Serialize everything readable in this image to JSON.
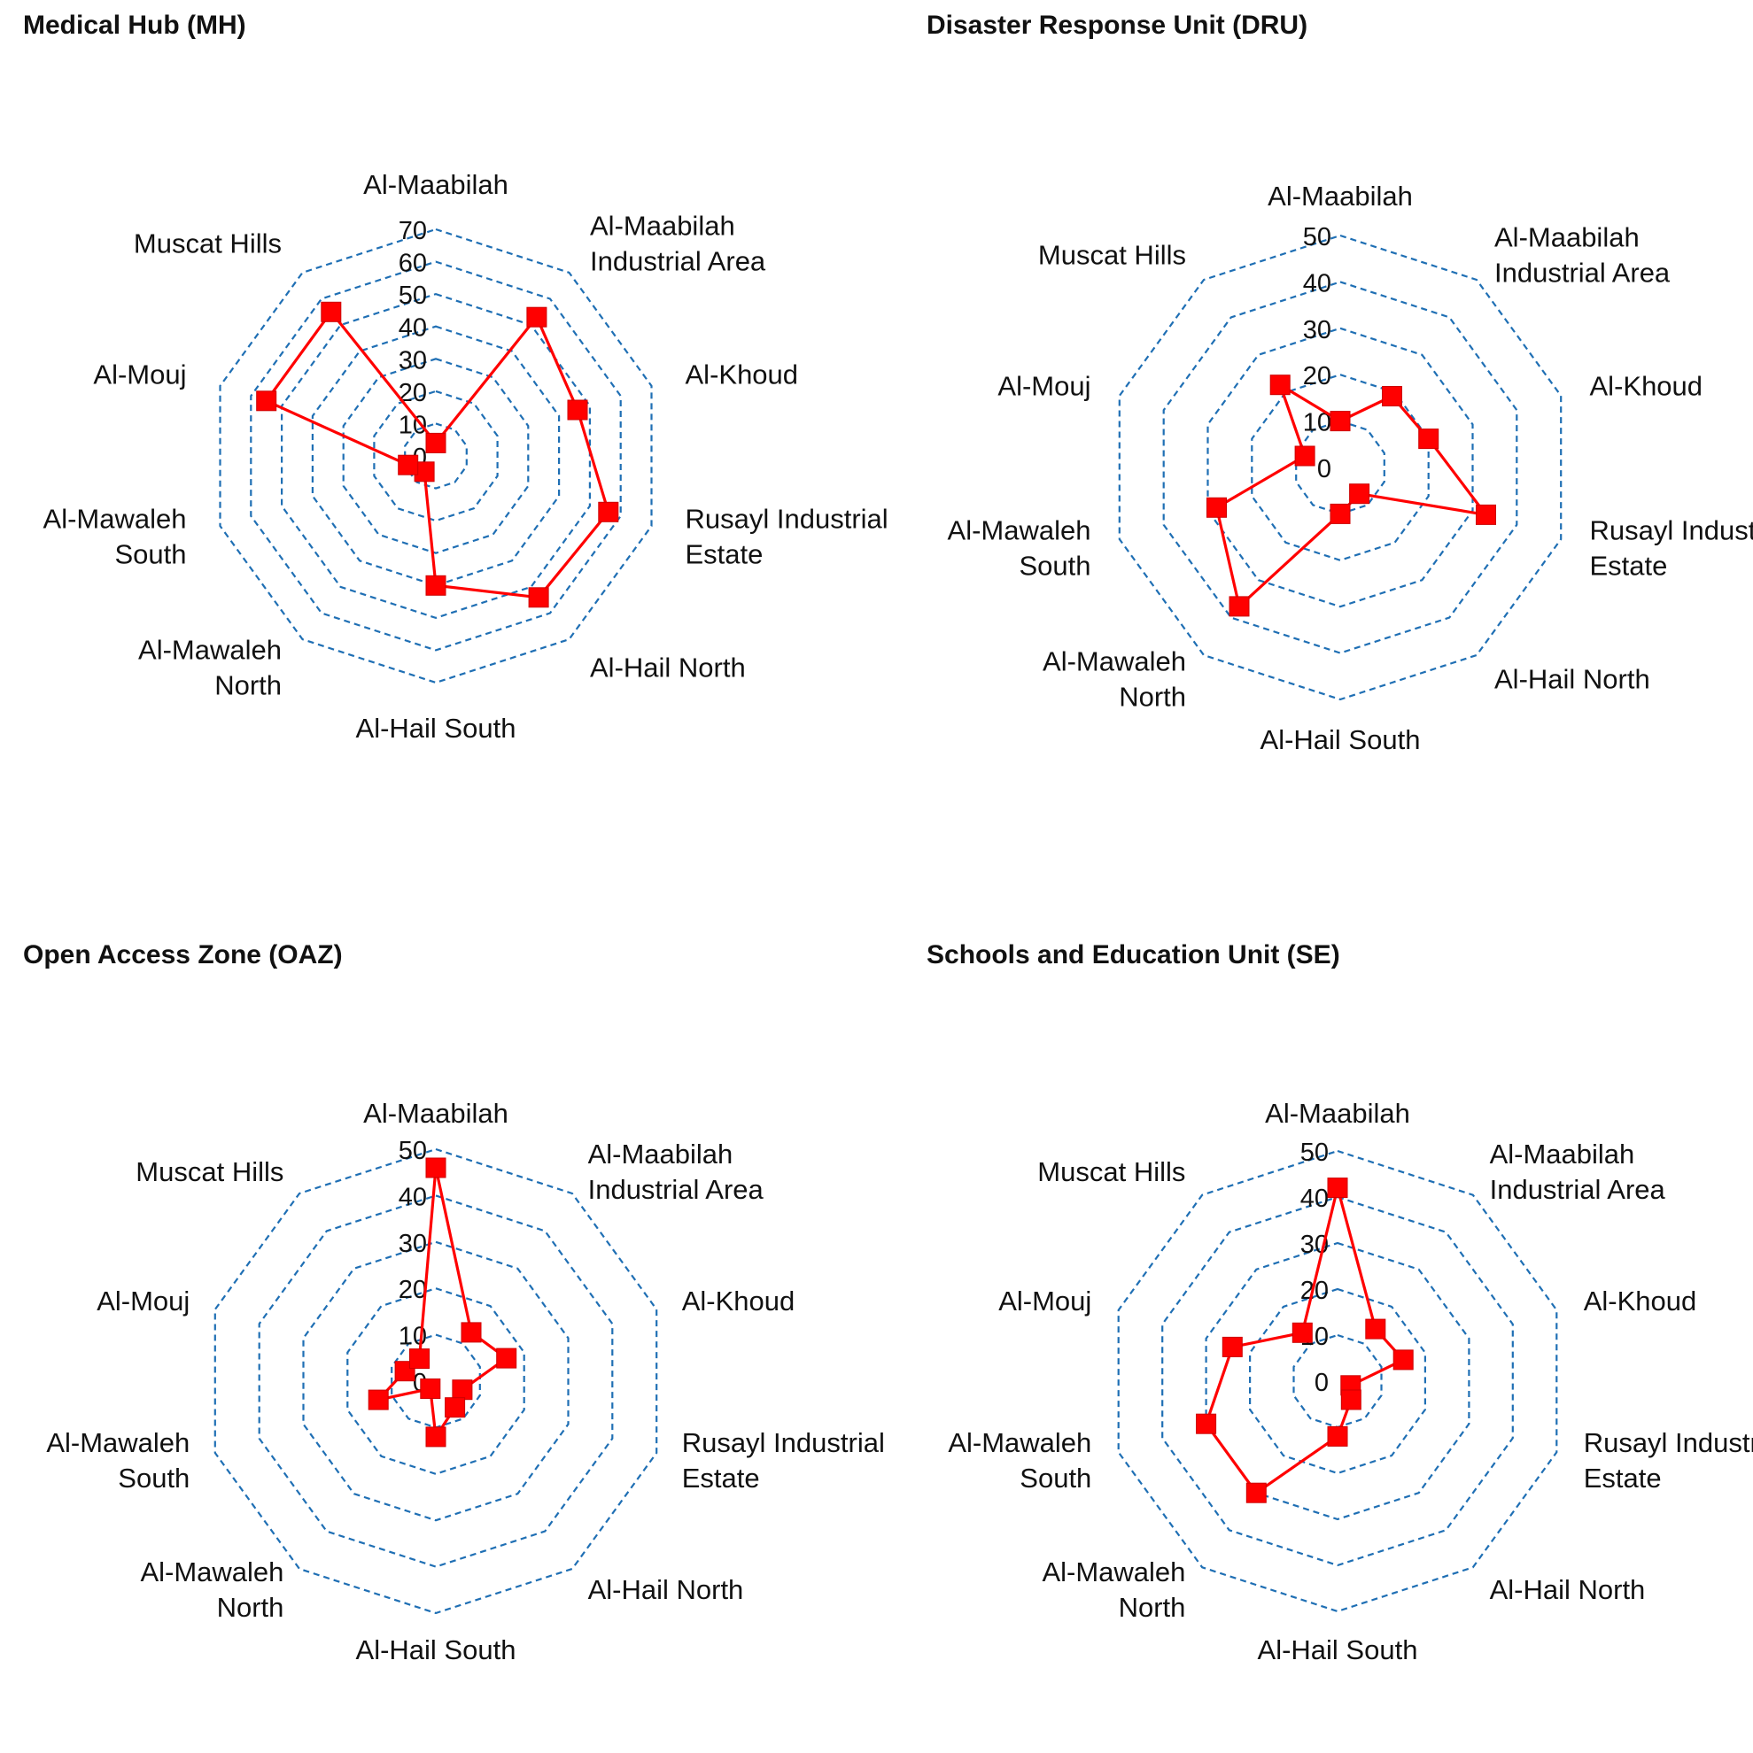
{
  "chart_data": [
    {
      "type": "radar",
      "title": "Medical Hub (MH)",
      "categories": [
        "Al-Maabilah",
        "Al-Maabilah Industrial Area",
        "Al-Khoud",
        "Rusayl Industrial Estate",
        "Al-Hail North",
        "Al-Hail South",
        "Al-Mawaleh North",
        "Al-Mawaleh South",
        "Al-Mouj",
        "Muscat Hills"
      ],
      "values": [
        4,
        53,
        46,
        56,
        54,
        40,
        6,
        9,
        55,
        55
      ],
      "rlim": [
        0,
        70
      ],
      "ticks": [
        0,
        10,
        20,
        30,
        40,
        50,
        60,
        70
      ],
      "series_color": "#ff0000",
      "grid_color": "#1f6fb4"
    },
    {
      "type": "radar",
      "title": "Disaster Response Unit (DRU)",
      "categories": [
        "Al-Maabilah",
        "Al-Maabilah Industrial Area",
        "Al-Khoud",
        "Rusayl Industrial Estate",
        "Al-Hail North",
        "Al-Hail South",
        "Al-Mawaleh North",
        "Al-Mawaleh South",
        "Al-Mouj",
        "Muscat Hills"
      ],
      "values": [
        10,
        19,
        20,
        33,
        7,
        10,
        37,
        28,
        8,
        22
      ],
      "rlim": [
        0,
        50
      ],
      "ticks": [
        0,
        10,
        20,
        30,
        40,
        50
      ],
      "series_color": "#ff0000",
      "grid_color": "#1f6fb4"
    },
    {
      "type": "radar",
      "title": "Open Access Zone (OAZ)",
      "categories": [
        "Al-Maabilah",
        "Al-Maabilah Industrial Area",
        "Al-Khoud",
        "Rusayl Industrial Estate",
        "Al-Hail North",
        "Al-Hail South",
        "Al-Mawaleh North",
        "Al-Mawaleh South",
        "Al-Mouj",
        "Muscat Hills"
      ],
      "values": [
        46,
        13,
        16,
        6,
        7,
        12,
        2,
        13,
        7,
        6
      ],
      "rlim": [
        0,
        50
      ],
      "ticks": [
        0,
        10,
        20,
        30,
        40,
        50
      ],
      "series_color": "#ff0000",
      "grid_color": "#1f6fb4"
    },
    {
      "type": "radar",
      "title": "Schools and Education Unit (SE)",
      "categories": [
        "Al-Maabilah",
        "Al-Maabilah Industrial Area",
        "Al-Khoud",
        "Rusayl Industrial Estate",
        "Al-Hail North",
        "Al-Hail South",
        "Al-Mawaleh North",
        "Al-Mawaleh South",
        "Al-Mouj",
        "Muscat Hills"
      ],
      "values": [
        42,
        14,
        15,
        3,
        5,
        12,
        30,
        30,
        24,
        13
      ],
      "rlim": [
        0,
        50
      ],
      "ticks": [
        0,
        10,
        20,
        30,
        40,
        50
      ],
      "series_color": "#ff0000",
      "grid_color": "#1f6fb4"
    }
  ]
}
